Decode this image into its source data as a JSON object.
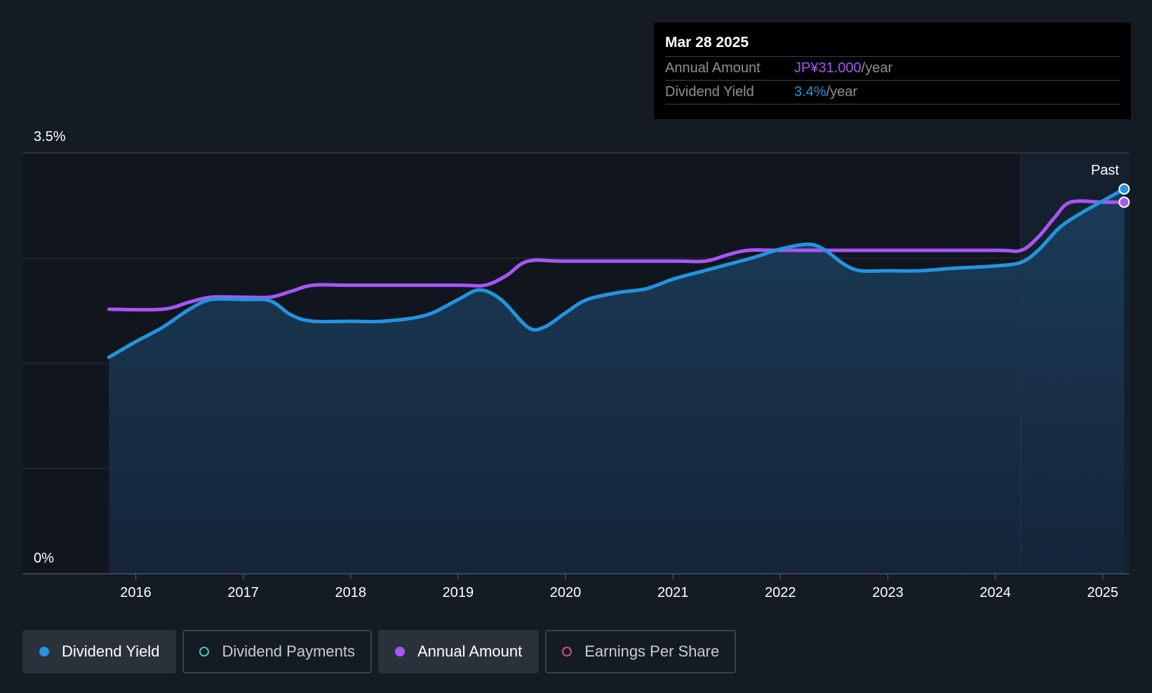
{
  "tooltip": {
    "date": "Mar 28 2025",
    "rows": [
      {
        "label": "Annual Amount",
        "value": "JP¥31.000",
        "unit": "/year",
        "color": "#a855f7"
      },
      {
        "label": "Dividend Yield",
        "value": "3.4%",
        "unit": "/year",
        "color": "#2394df"
      }
    ]
  },
  "legend": [
    {
      "label": "Dividend Yield",
      "color": "#2394df",
      "active": true,
      "filled": true,
      "icon": "filled-circle"
    },
    {
      "label": "Dividend Payments",
      "color": "#4fc4b6",
      "active": false,
      "filled": false,
      "icon": "hollow-circle"
    },
    {
      "label": "Annual Amount",
      "color": "#a855f7",
      "active": true,
      "filled": true,
      "icon": "filled-circle"
    },
    {
      "label": "Earnings Per Share",
      "color": "#d14f7c",
      "active": false,
      "filled": false,
      "icon": "hollow-circle"
    }
  ],
  "chart_data": {
    "type": "line",
    "y_top_label": "3.5%",
    "y_bottom_label": "0%",
    "ylim": [
      0,
      3.5
    ],
    "xlim": [
      2015.35,
      2025.25
    ],
    "x_ticks": [
      2016,
      2017,
      2018,
      2019,
      2020,
      2021,
      2022,
      2023,
      2024,
      2025
    ],
    "x_tick_labels": [
      "2016",
      "2017",
      "2018",
      "2019",
      "2020",
      "2021",
      "2022",
      "2023",
      "2024",
      "2025"
    ],
    "grid": true,
    "past_label": "Past",
    "past_start_x": 2024.24,
    "colors": {
      "yield": "#2394df",
      "amount": "#a855f7",
      "area": "#1a3a57"
    },
    "series": [
      {
        "name": "Dividend Yield",
        "key": "yield",
        "points": [
          [
            2015.75,
            1.8
          ],
          [
            2016.0,
            1.93
          ],
          [
            2016.25,
            2.05
          ],
          [
            2016.5,
            2.2
          ],
          [
            2016.7,
            2.28
          ],
          [
            2017.0,
            2.28
          ],
          [
            2017.25,
            2.27
          ],
          [
            2017.45,
            2.15
          ],
          [
            2017.65,
            2.1
          ],
          [
            2018.0,
            2.1
          ],
          [
            2018.3,
            2.1
          ],
          [
            2018.7,
            2.15
          ],
          [
            2019.0,
            2.28
          ],
          [
            2019.2,
            2.36
          ],
          [
            2019.4,
            2.28
          ],
          [
            2019.65,
            2.05
          ],
          [
            2019.8,
            2.05
          ],
          [
            2020.0,
            2.17
          ],
          [
            2020.2,
            2.28
          ],
          [
            2020.5,
            2.34
          ],
          [
            2020.75,
            2.37
          ],
          [
            2021.0,
            2.45
          ],
          [
            2021.25,
            2.51
          ],
          [
            2021.5,
            2.57
          ],
          [
            2021.75,
            2.63
          ],
          [
            2022.0,
            2.7
          ],
          [
            2022.25,
            2.74
          ],
          [
            2022.4,
            2.7
          ],
          [
            2022.6,
            2.57
          ],
          [
            2022.75,
            2.52
          ],
          [
            2023.0,
            2.52
          ],
          [
            2023.3,
            2.52
          ],
          [
            2023.6,
            2.54
          ],
          [
            2024.0,
            2.56
          ],
          [
            2024.24,
            2.59
          ],
          [
            2024.4,
            2.69
          ],
          [
            2024.6,
            2.88
          ],
          [
            2024.8,
            3.0
          ],
          [
            2025.0,
            3.1
          ],
          [
            2025.2,
            3.2
          ]
        ]
      },
      {
        "name": "Annual Amount",
        "key": "amount",
        "points": [
          [
            2015.75,
            2.2
          ],
          [
            2016.25,
            2.2
          ],
          [
            2016.5,
            2.26
          ],
          [
            2016.7,
            2.3
          ],
          [
            2017.0,
            2.3
          ],
          [
            2017.25,
            2.3
          ],
          [
            2017.45,
            2.35
          ],
          [
            2017.65,
            2.4
          ],
          [
            2018.0,
            2.4
          ],
          [
            2019.0,
            2.4
          ],
          [
            2019.25,
            2.4
          ],
          [
            2019.45,
            2.48
          ],
          [
            2019.65,
            2.6
          ],
          [
            2020.0,
            2.6
          ],
          [
            2021.0,
            2.6
          ],
          [
            2021.3,
            2.6
          ],
          [
            2021.5,
            2.65
          ],
          [
            2021.7,
            2.69
          ],
          [
            2022.0,
            2.69
          ],
          [
            2023.0,
            2.69
          ],
          [
            2024.0,
            2.69
          ],
          [
            2024.24,
            2.69
          ],
          [
            2024.4,
            2.8
          ],
          [
            2024.55,
            2.96
          ],
          [
            2024.7,
            3.09
          ],
          [
            2025.0,
            3.09
          ],
          [
            2025.2,
            3.09
          ]
        ]
      }
    ]
  }
}
